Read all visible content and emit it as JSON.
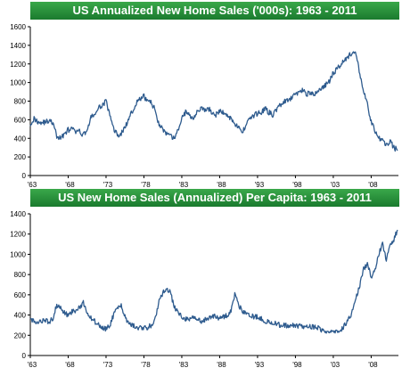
{
  "colors": {
    "title_bg": "#1f8a33",
    "title_text": "#ffffff",
    "series": "#2e5b8e"
  },
  "chart_data": [
    {
      "type": "line",
      "title": "US Annualized New Home Sales ('000s): 1963 - 2011",
      "xlabel": "",
      "ylabel": "",
      "xlim": [
        1963,
        2011.6
      ],
      "ylim": [
        0,
        1600
      ],
      "yticks": [
        0,
        200,
        400,
        600,
        800,
        1000,
        1200,
        1400,
        1600
      ],
      "xticks": [
        {
          "value": 1963,
          "label": "'63"
        },
        {
          "value": 1968,
          "label": "'68"
        },
        {
          "value": 1973,
          "label": "'73"
        },
        {
          "value": 1978,
          "label": "'78"
        },
        {
          "value": 1983,
          "label": "'83"
        },
        {
          "value": 1988,
          "label": "'88"
        },
        {
          "value": 1993,
          "label": "'93"
        },
        {
          "value": 1998,
          "label": "'98"
        },
        {
          "value": 2003,
          "label": "'03"
        },
        {
          "value": 2008,
          "label": "'08"
        }
      ],
      "grid": false,
      "series": [
        {
          "x": [
            1963,
            1963.5,
            1964,
            1964.5,
            1965,
            1965.5,
            1966,
            1966.5,
            1967,
            1967.5,
            1968,
            1968.5,
            1969,
            1969.5,
            1970,
            1970.5,
            1971,
            1971.5,
            1972,
            1972.5,
            1973,
            1973.5,
            1974,
            1974.5,
            1975,
            1975.5,
            1976,
            1976.5,
            1977,
            1977.5,
            1978,
            1978.5,
            1979,
            1979.5,
            1980,
            1980.5,
            1981,
            1981.5,
            1982,
            1982.5,
            1983,
            1983.5,
            1984,
            1984.5,
            1985,
            1985.5,
            1986,
            1986.5,
            1987,
            1987.5,
            1988,
            1988.5,
            1989,
            1989.5,
            1990,
            1990.5,
            1991,
            1991.5,
            1992,
            1992.5,
            1993,
            1993.5,
            1994,
            1994.5,
            1995,
            1995.5,
            1996,
            1996.5,
            1997,
            1997.5,
            1998,
            1998.5,
            1999,
            1999.5,
            2000,
            2000.5,
            2001,
            2001.5,
            2002,
            2002.5,
            2003,
            2003.5,
            2004,
            2004.5,
            2005,
            2005.5,
            2006,
            2006.5,
            2007,
            2007.5,
            2008,
            2008.5,
            2009,
            2009.5,
            2010,
            2010.5,
            2011,
            2011.5
          ],
          "values": [
            560,
            610,
            580,
            570,
            575,
            590,
            560,
            420,
            400,
            450,
            490,
            500,
            470,
            470,
            440,
            490,
            620,
            660,
            720,
            760,
            800,
            640,
            510,
            430,
            450,
            520,
            600,
            700,
            780,
            820,
            850,
            800,
            780,
            700,
            550,
            500,
            440,
            420,
            400,
            480,
            620,
            680,
            650,
            620,
            690,
            720,
            700,
            720,
            680,
            650,
            690,
            680,
            640,
            620,
            560,
            510,
            460,
            560,
            620,
            640,
            670,
            680,
            720,
            680,
            650,
            710,
            760,
            790,
            800,
            830,
            880,
            900,
            920,
            880,
            890,
            860,
            920,
            940,
            970,
            1020,
            1100,
            1150,
            1200,
            1250,
            1280,
            1320,
            1300,
            1100,
            900,
            760,
            580,
            480,
            400,
            380,
            330,
            370,
            300,
            270
          ]
        }
      ]
    },
    {
      "type": "line",
      "title": "US New Home Sales (Annualized) Per Capita: 1963 - 2011",
      "xlabel": "",
      "ylabel": "",
      "xlim": [
        1963,
        2011.6
      ],
      "ylim": [
        0,
        1400
      ],
      "yticks": [
        0,
        200,
        400,
        600,
        800,
        1000,
        1200,
        1400
      ],
      "xticks": [
        {
          "value": 1963,
          "label": "'63"
        },
        {
          "value": 1968,
          "label": "'68"
        },
        {
          "value": 1973,
          "label": "'73"
        },
        {
          "value": 1978,
          "label": "'78"
        },
        {
          "value": 1983,
          "label": "'83"
        },
        {
          "value": 1988,
          "label": "'88"
        },
        {
          "value": 1993,
          "label": "'93"
        },
        {
          "value": 1998,
          "label": "'98"
        },
        {
          "value": 2003,
          "label": "'03"
        },
        {
          "value": 2008,
          "label": "'08"
        }
      ],
      "grid": false,
      "series": [
        {
          "x": [
            1963,
            1963.5,
            1964,
            1964.5,
            1965,
            1965.5,
            1966,
            1966.5,
            1967,
            1967.5,
            1968,
            1968.5,
            1969,
            1969.5,
            1970,
            1970.5,
            1971,
            1971.5,
            1972,
            1972.5,
            1973,
            1973.5,
            1974,
            1974.5,
            1975,
            1975.5,
            1976,
            1976.5,
            1977,
            1977.5,
            1978,
            1978.5,
            1979,
            1979.5,
            1980,
            1980.5,
            1981,
            1981.5,
            1982,
            1982.5,
            1983,
            1983.5,
            1984,
            1984.5,
            1985,
            1985.5,
            1986,
            1986.5,
            1987,
            1987.5,
            1988,
            1988.5,
            1989,
            1989.5,
            1990,
            1990.5,
            1991,
            1991.5,
            1992,
            1992.5,
            1993,
            1993.5,
            1994,
            1994.5,
            1995,
            1995.5,
            1996,
            1996.5,
            1997,
            1997.5,
            1998,
            1998.5,
            1999,
            1999.5,
            2000,
            2000.5,
            2001,
            2001.5,
            2002,
            2002.5,
            2003,
            2003.5,
            2004,
            2004.5,
            2005,
            2005.5,
            2006,
            2006.5,
            2007,
            2007.5,
            2008,
            2008.5,
            2009,
            2009.5,
            2010,
            2010.5,
            2011,
            2011.5
          ],
          "values": [
            360,
            330,
            320,
            340,
            350,
            330,
            370,
            500,
            480,
            420,
            400,
            430,
            450,
            470,
            520,
            420,
            370,
            340,
            300,
            280,
            260,
            300,
            400,
            480,
            500,
            380,
            320,
            300,
            280,
            270,
            270,
            280,
            300,
            360,
            550,
            620,
            670,
            620,
            480,
            420,
            380,
            360,
            360,
            380,
            360,
            340,
            350,
            370,
            380,
            390,
            360,
            380,
            400,
            450,
            600,
            500,
            440,
            420,
            400,
            380,
            380,
            360,
            340,
            330,
            330,
            310,
            300,
            300,
            290,
            300,
            300,
            290,
            280,
            300,
            290,
            280,
            270,
            250,
            240,
            240,
            220,
            230,
            250,
            300,
            350,
            430,
            560,
            700,
            860,
            900,
            780,
            840,
            1000,
            1100,
            950,
            1080,
            1150,
            1240
          ]
        }
      ]
    }
  ]
}
